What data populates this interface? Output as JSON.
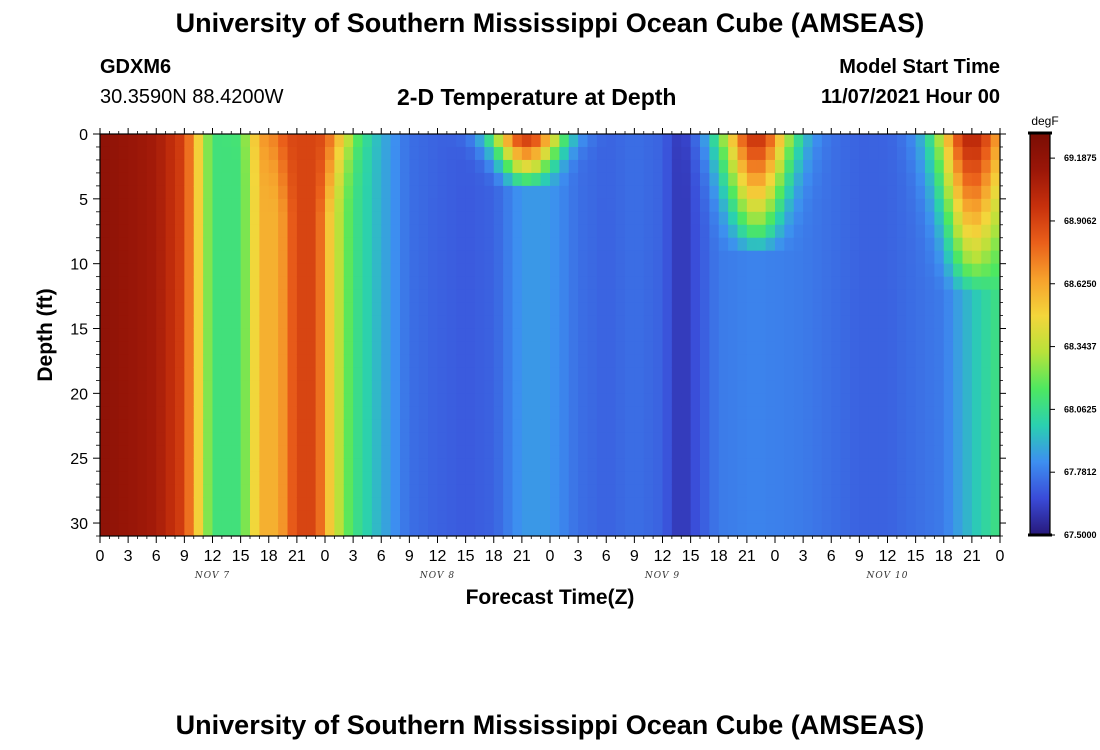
{
  "header": {
    "title": "University of Southern Mississippi Ocean Cube (AMSEAS)",
    "station_id": "GDXM6",
    "coordinates": "30.3590N  88.4200W",
    "plot_title": "2-D Temperature at Depth",
    "start_label": "Model Start Time",
    "start_value": "11/07/2021 Hour 00"
  },
  "footer": {
    "title": "University of Southern Mississippi Ocean Cube (AMSEAS)"
  },
  "chart_data": {
    "type": "heatmap",
    "title": "2-D Temperature at Depth",
    "xlabel": "Forecast Time(Z)",
    "ylabel": "Depth (ft)",
    "x_range_hours": [
      0,
      96
    ],
    "ylim": [
      0,
      31
    ],
    "y_inverted": true,
    "x_ticks": [
      "0",
      "3",
      "6",
      "9",
      "12",
      "15",
      "18",
      "21",
      "0",
      "3",
      "6",
      "9",
      "12",
      "15",
      "18",
      "21",
      "0",
      "3",
      "6",
      "9",
      "12",
      "15",
      "18",
      "21",
      "0",
      "3",
      "6",
      "9",
      "12",
      "15",
      "18",
      "21",
      "0"
    ],
    "y_ticks": [
      0,
      5,
      10,
      15,
      20,
      25,
      30
    ],
    "days": [
      {
        "label": "NOV 7",
        "hour": 12
      },
      {
        "label": "NOV 8",
        "hour": 36
      },
      {
        "label": "NOV 9",
        "hour": 60
      },
      {
        "label": "NOV 10",
        "hour": 84
      }
    ],
    "colorbar": {
      "unit": "degF",
      "min": 67.5,
      "max": 69.3,
      "ticks": [
        "69.1875",
        "68.9062",
        "68.6250",
        "68.3437",
        "68.0625",
        "67.7812",
        "67.5000"
      ],
      "colors": [
        "#27187a",
        "#3a4bd8",
        "#3d8ff0",
        "#2ad0b0",
        "#4ee860",
        "#b8e23a",
        "#f3d63b",
        "#f6a12c",
        "#ea5f1a",
        "#c7300c",
        "#9a1608",
        "#7a0d04"
      ]
    },
    "temperature_profile": {
      "hours": [
        0,
        6,
        9,
        12,
        15,
        17,
        19,
        21,
        23,
        25,
        27,
        30,
        33,
        36,
        39,
        42,
        45,
        48,
        51,
        54,
        57,
        60,
        62,
        63,
        66,
        70,
        75,
        78,
        81,
        84,
        87,
        90,
        93,
        96
      ],
      "values": [
        69.2,
        69.1,
        68.9,
        68.1,
        68.1,
        68.6,
        68.6,
        68.9,
        68.9,
        68.4,
        68.1,
        67.9,
        67.75,
        67.72,
        67.7,
        67.72,
        67.85,
        67.85,
        67.75,
        67.72,
        67.75,
        67.72,
        67.58,
        67.65,
        67.78,
        67.8,
        67.78,
        67.75,
        67.72,
        67.72,
        67.75,
        67.78,
        67.95,
        68.1
      ]
    },
    "surface_warm_events": [
      {
        "center_hour": 22,
        "max_depth_ft": 6,
        "peak": 68.9
      },
      {
        "center_hour": 45.5,
        "max_depth_ft": 4,
        "peak": 69.0
      },
      {
        "center_hour": 70,
        "max_depth_ft": 9,
        "peak": 69.0
      },
      {
        "center_hour": 93,
        "max_depth_ft": 12,
        "peak": 69.05
      }
    ]
  }
}
